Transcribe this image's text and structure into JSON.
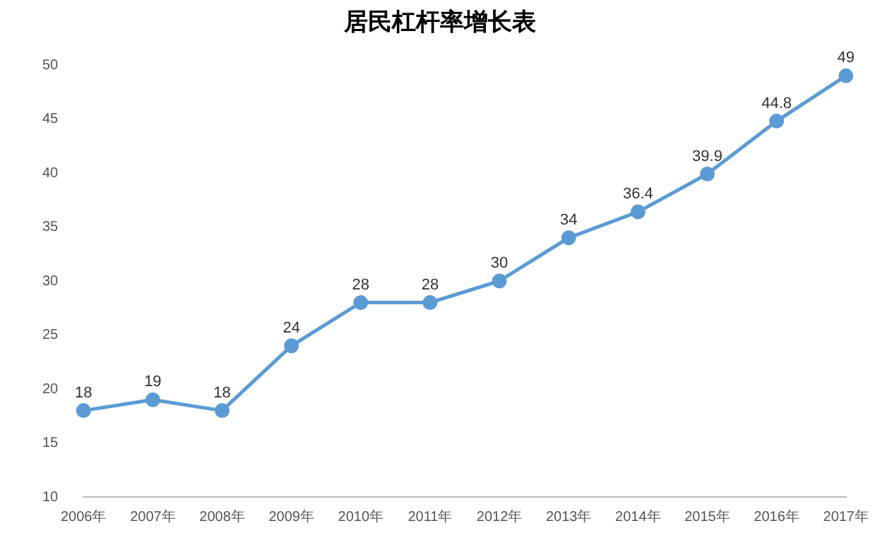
{
  "chart_data": {
    "type": "line",
    "title": "居民杠杆率增长表",
    "categories": [
      "2006年",
      "2007年",
      "2008年",
      "2009年",
      "2010年",
      "2011年",
      "2012年",
      "2013年",
      "2014年",
      "2015年",
      "2016年",
      "2017年"
    ],
    "values": [
      18,
      19,
      18,
      24,
      28,
      28,
      30,
      34,
      36.4,
      39.9,
      44.8,
      49
    ],
    "color": "#5b9bd5",
    "ylim": [
      10,
      50
    ],
    "yticks": [
      10,
      15,
      20,
      25,
      30,
      35,
      40,
      45,
      50
    ],
    "grid": false,
    "legend": false,
    "marker": "circle",
    "line_style": "solid",
    "data_labels": true
  }
}
